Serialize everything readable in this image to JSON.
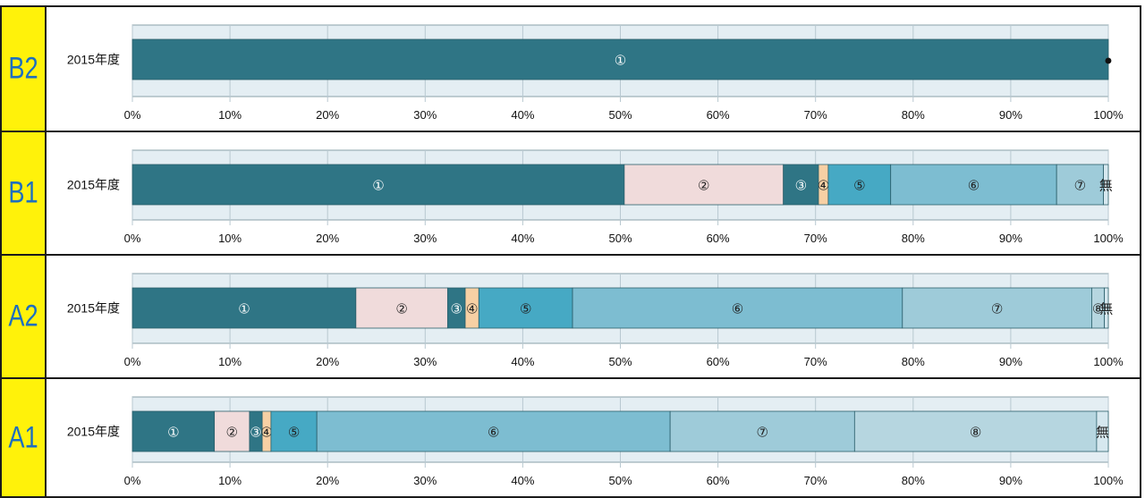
{
  "colors": {
    "s1": "#2f7585",
    "s2": "#f0dbdb",
    "s3": "#2f7585",
    "s4": "#f7d0a4",
    "s5": "#46a9c4",
    "s6": "#7dbdd1",
    "s7": "#9ecbd9",
    "s8": "#b6d6e0",
    "nashi": "#d6e8ef",
    "track": "#e4eef3",
    "grid": "#b8c8d0",
    "tag_bg": "#fff20a",
    "tag_text": "#1e6fbf"
  },
  "chart_data": [
    {
      "type": "bar",
      "stacked": true,
      "orientation": "horizontal",
      "panel_label": "B2",
      "categories": [
        "2015年度"
      ],
      "xlim": [
        0,
        100
      ],
      "xticks": [
        "0%",
        "10%",
        "20%",
        "30%",
        "40%",
        "50%",
        "60%",
        "70%",
        "80%",
        "90%",
        "100%"
      ],
      "series": [
        {
          "label": "①",
          "values": [
            100
          ],
          "color_key": "s1"
        }
      ],
      "end_marker": "●"
    },
    {
      "type": "bar",
      "stacked": true,
      "orientation": "horizontal",
      "panel_label": "B1",
      "categories": [
        "2015年度"
      ],
      "xlim": [
        0,
        100
      ],
      "xticks": [
        "0%",
        "10%",
        "20%",
        "30%",
        "40%",
        "50%",
        "60%",
        "70%",
        "80%",
        "90%",
        "100%"
      ],
      "series": [
        {
          "label": "①",
          "values": [
            50.4
          ],
          "color_key": "s1"
        },
        {
          "label": "②",
          "values": [
            16.3
          ],
          "color_key": "s2"
        },
        {
          "label": "③",
          "values": [
            3.6
          ],
          "color_key": "s3"
        },
        {
          "label": "④",
          "values": [
            1.0
          ],
          "color_key": "s4"
        },
        {
          "label": "⑤",
          "values": [
            6.4
          ],
          "color_key": "s5"
        },
        {
          "label": "⑥",
          "values": [
            17.0
          ],
          "color_key": "s6"
        },
        {
          "label": "⑦",
          "values": [
            4.8
          ],
          "color_key": "s7"
        },
        {
          "label": "無",
          "values": [
            0.5
          ],
          "color_key": "nashi"
        }
      ]
    },
    {
      "type": "bar",
      "stacked": true,
      "orientation": "horizontal",
      "panel_label": "A2",
      "categories": [
        "2015年度"
      ],
      "xlim": [
        0,
        100
      ],
      "xticks": [
        "0%",
        "10%",
        "20%",
        "30%",
        "40%",
        "50%",
        "60%",
        "70%",
        "80%",
        "90%",
        "100%"
      ],
      "series": [
        {
          "label": "①",
          "values": [
            22.9
          ],
          "color_key": "s1"
        },
        {
          "label": "②",
          "values": [
            9.4
          ],
          "color_key": "s2"
        },
        {
          "label": "③",
          "values": [
            1.8
          ],
          "color_key": "s3"
        },
        {
          "label": "④",
          "values": [
            1.4
          ],
          "color_key": "s4"
        },
        {
          "label": "⑤",
          "values": [
            9.6
          ],
          "color_key": "s5"
        },
        {
          "label": "⑥",
          "values": [
            33.8
          ],
          "color_key": "s6"
        },
        {
          "label": "⑦",
          "values": [
            19.4
          ],
          "color_key": "s7"
        },
        {
          "label": "⑧",
          "values": [
            1.3
          ],
          "color_key": "s8"
        },
        {
          "label": "無",
          "values": [
            0.4
          ],
          "color_key": "nashi"
        }
      ]
    },
    {
      "type": "bar",
      "stacked": true,
      "orientation": "horizontal",
      "panel_label": "A1",
      "categories": [
        "2015年度"
      ],
      "xlim": [
        0,
        100
      ],
      "xticks": [
        "0%",
        "10%",
        "20%",
        "30%",
        "40%",
        "50%",
        "60%",
        "70%",
        "80%",
        "90%",
        "100%"
      ],
      "series": [
        {
          "label": "①",
          "values": [
            8.4
          ],
          "color_key": "s1"
        },
        {
          "label": "②",
          "values": [
            3.6
          ],
          "color_key": "s2"
        },
        {
          "label": "③",
          "values": [
            1.3
          ],
          "color_key": "s3"
        },
        {
          "label": "④",
          "values": [
            0.9
          ],
          "color_key": "s4"
        },
        {
          "label": "⑤",
          "values": [
            4.7
          ],
          "color_key": "s5"
        },
        {
          "label": "⑥",
          "values": [
            36.2
          ],
          "color_key": "s6"
        },
        {
          "label": "⑦",
          "values": [
            18.9
          ],
          "color_key": "s7"
        },
        {
          "label": "⑧",
          "values": [
            24.8
          ],
          "color_key": "s8"
        },
        {
          "label": "無",
          "values": [
            1.2
          ],
          "color_key": "nashi"
        }
      ]
    }
  ]
}
